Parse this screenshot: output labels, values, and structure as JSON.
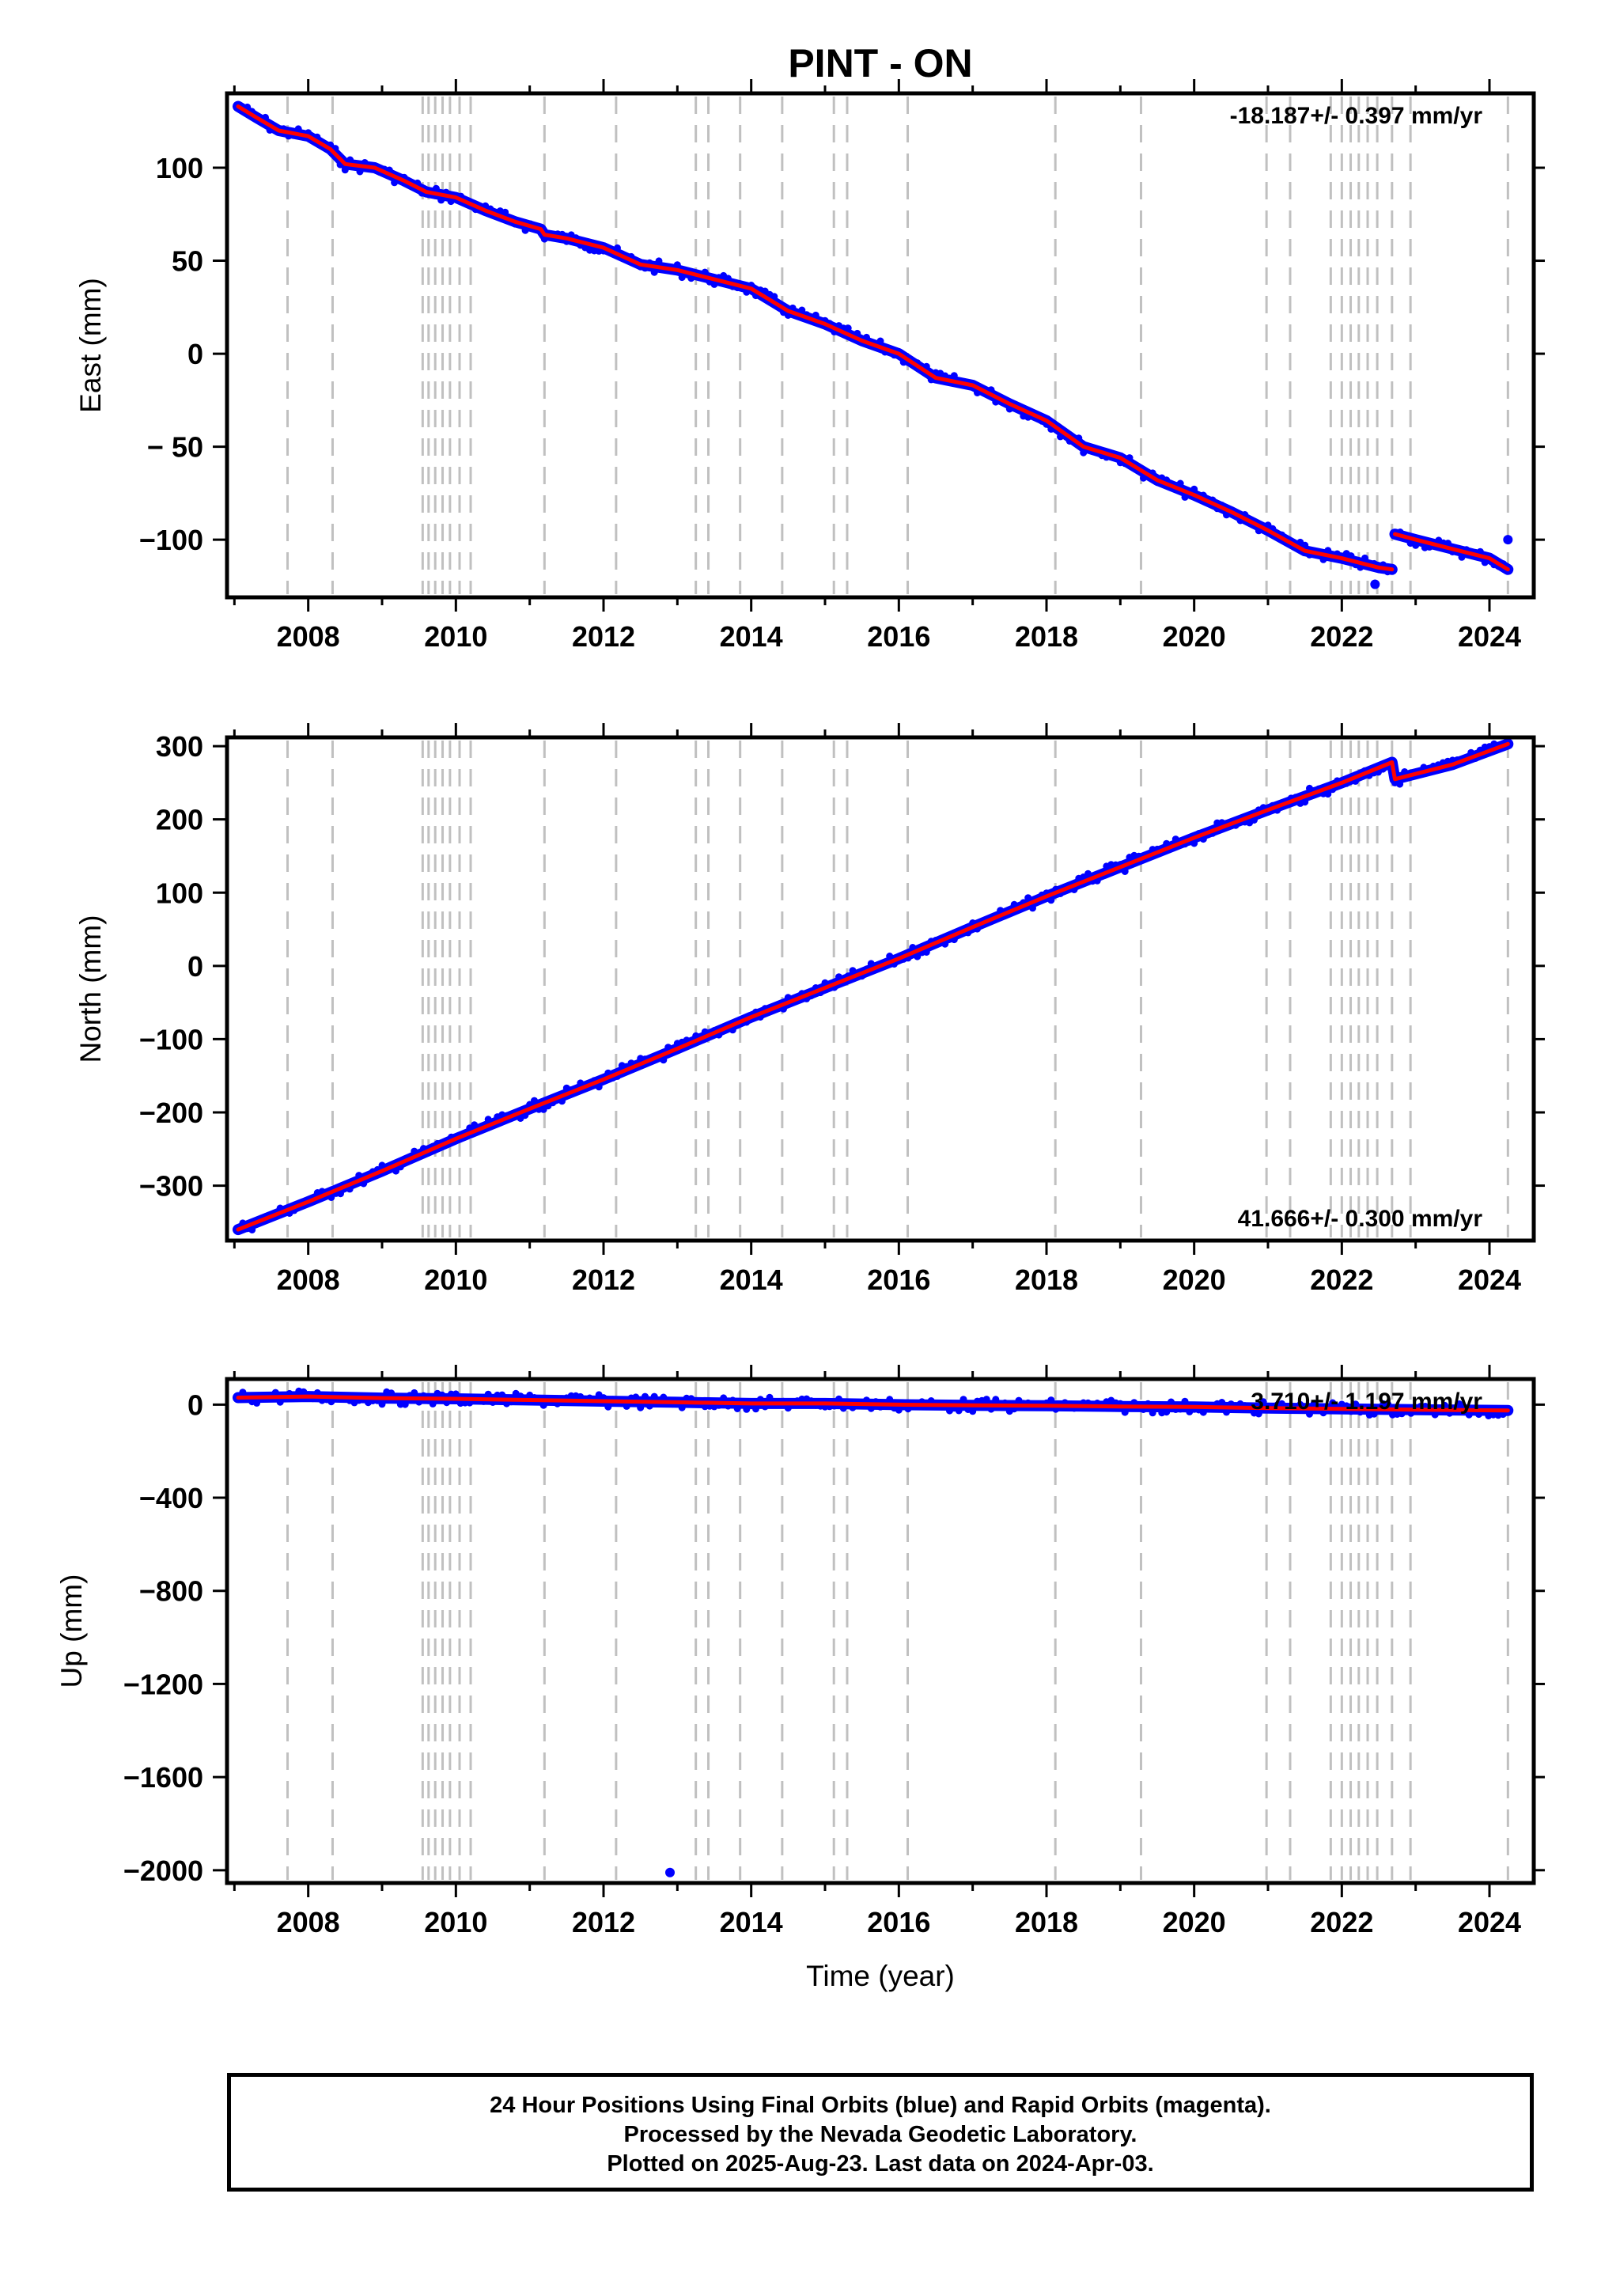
{
  "chart_data": {
    "type": "scatter",
    "title": "PINT - ON",
    "xlabel": "Time (year)",
    "xlim": [
      2006.9,
      2024.6
    ],
    "x_ticks": [
      2008,
      2010,
      2012,
      2014,
      2016,
      2018,
      2020,
      2022,
      2024
    ],
    "x_tick_labels": [
      "2008",
      "2010",
      "2012",
      "2014",
      "2016",
      "2018",
      "2020",
      "2022",
      "2024"
    ],
    "grid": false,
    "colors": {
      "data": "#0000ff",
      "fit": "#ff0000",
      "event_lines": "#c0c0c0",
      "frame": "#000000"
    },
    "event_lines": [
      2007.72,
      2008.33,
      2009.55,
      2009.63,
      2009.72,
      2009.82,
      2009.92,
      2010.05,
      2010.2,
      2011.2,
      2012.17,
      2013.25,
      2013.42,
      2013.85,
      2014.42,
      2015.12,
      2015.3,
      2016.12,
      2018.12,
      2019.28,
      2020.98,
      2021.3,
      2021.85,
      2022.0,
      2022.12,
      2022.23,
      2022.35,
      2022.48,
      2022.68,
      2022.93,
      2024.25
    ],
    "panels": [
      {
        "name": "east",
        "ylabel": "East (mm)",
        "ylim": [
          -131,
          140
        ],
        "y_ticks": [
          100,
          50,
          0,
          -50,
          -100
        ],
        "y_tick_labels": [
          "100",
          "50",
          "0",
          "− 50",
          "−100"
        ],
        "rate": "-18.187+/- 0.397 mm/yr",
        "rate_position": "top-right",
        "x": [
          2007.05,
          2007.3,
          2007.6,
          2008.0,
          2008.3,
          2008.5,
          2008.9,
          2009.3,
          2009.6,
          2010.0,
          2010.4,
          2010.8,
          2011.15,
          2011.2,
          2011.5,
          2012.0,
          2012.5,
          2013.0,
          2013.5,
          2014.0,
          2014.5,
          2015.0,
          2015.5,
          2016.0,
          2016.5,
          2017.0,
          2017.5,
          2018.0,
          2018.5,
          2019.0,
          2019.5,
          2020.0,
          2020.5,
          2021.0,
          2021.5,
          2022.0,
          2022.5,
          2022.68,
          2022.72,
          2023.0,
          2023.5,
          2024.0,
          2024.25
        ],
        "y": [
          133,
          127,
          120,
          117,
          110,
          102,
          100,
          93,
          87,
          84,
          77,
          71,
          67,
          64,
          62,
          57,
          48,
          45,
          40,
          35,
          23,
          16,
          7,
          0,
          -13,
          -17,
          -27,
          -36,
          -50,
          -56,
          -68,
          -76,
          -85,
          -95,
          -106,
          -110,
          -115,
          -116,
          -97,
          -100,
          -105,
          -110,
          -116
        ],
        "outliers": [
          {
            "x": 2024.25,
            "y": -100
          },
          {
            "x": 2022.45,
            "y": -124
          }
        ]
      },
      {
        "name": "north",
        "ylabel": "North (mm)",
        "ylim": [
          -375,
          312
        ],
        "y_ticks": [
          300,
          200,
          100,
          0,
          -100,
          -200,
          -300
        ],
        "y_tick_labels": [
          "300",
          "200",
          "100",
          "0",
          "−100",
          "−200",
          "−300"
        ],
        "rate": "41.666+/- 0.300 mm/yr",
        "rate_position": "bottom-right",
        "x": [
          2007.05,
          2008.0,
          2009.0,
          2010.0,
          2011.0,
          2012.0,
          2013.0,
          2014.0,
          2015.0,
          2016.0,
          2017.0,
          2018.0,
          2019.0,
          2020.0,
          2021.0,
          2022.0,
          2022.68,
          2022.72,
          2023.5,
          2024.25
        ],
        "y": [
          -360,
          -322,
          -280,
          -236,
          -195,
          -155,
          -113,
          -70,
          -30,
          10,
          53,
          95,
          135,
          175,
          213,
          250,
          278,
          255,
          275,
          303
        ],
        "outliers": []
      },
      {
        "name": "up",
        "ylabel": "Up (mm)",
        "ylim": [
          -2055,
          110
        ],
        "y_ticks": [
          0,
          -400,
          -800,
          -1200,
          -1600,
          -2000
        ],
        "y_tick_labels": [
          "0",
          "−400",
          "−800",
          "−1200",
          "−1600",
          "−2000"
        ],
        "rate": "3.710+/- 1.197 mm/yr",
        "rate_position": "top-right",
        "x": [
          2007.05,
          2008.0,
          2009.0,
          2010.0,
          2011.0,
          2012.0,
          2013.0,
          2014.0,
          2015.0,
          2016.0,
          2017.0,
          2018.0,
          2019.0,
          2020.0,
          2021.0,
          2022.0,
          2023.0,
          2024.25
        ],
        "y": [
          30,
          35,
          28,
          25,
          20,
          15,
          10,
          5,
          5,
          0,
          -3,
          -5,
          -8,
          -10,
          -15,
          -18,
          -22,
          -25
        ],
        "outliers": [
          {
            "x": 2012.9,
            "y": -2010
          }
        ]
      }
    ]
  },
  "footer": {
    "line1": "24 Hour Positions Using Final Orbits (blue) and Rapid Orbits (magenta).",
    "line2": "Processed by the Nevada Geodetic Laboratory.",
    "line3": "Plotted on 2025-Aug-23. Last data on 2024-Apr-03."
  }
}
